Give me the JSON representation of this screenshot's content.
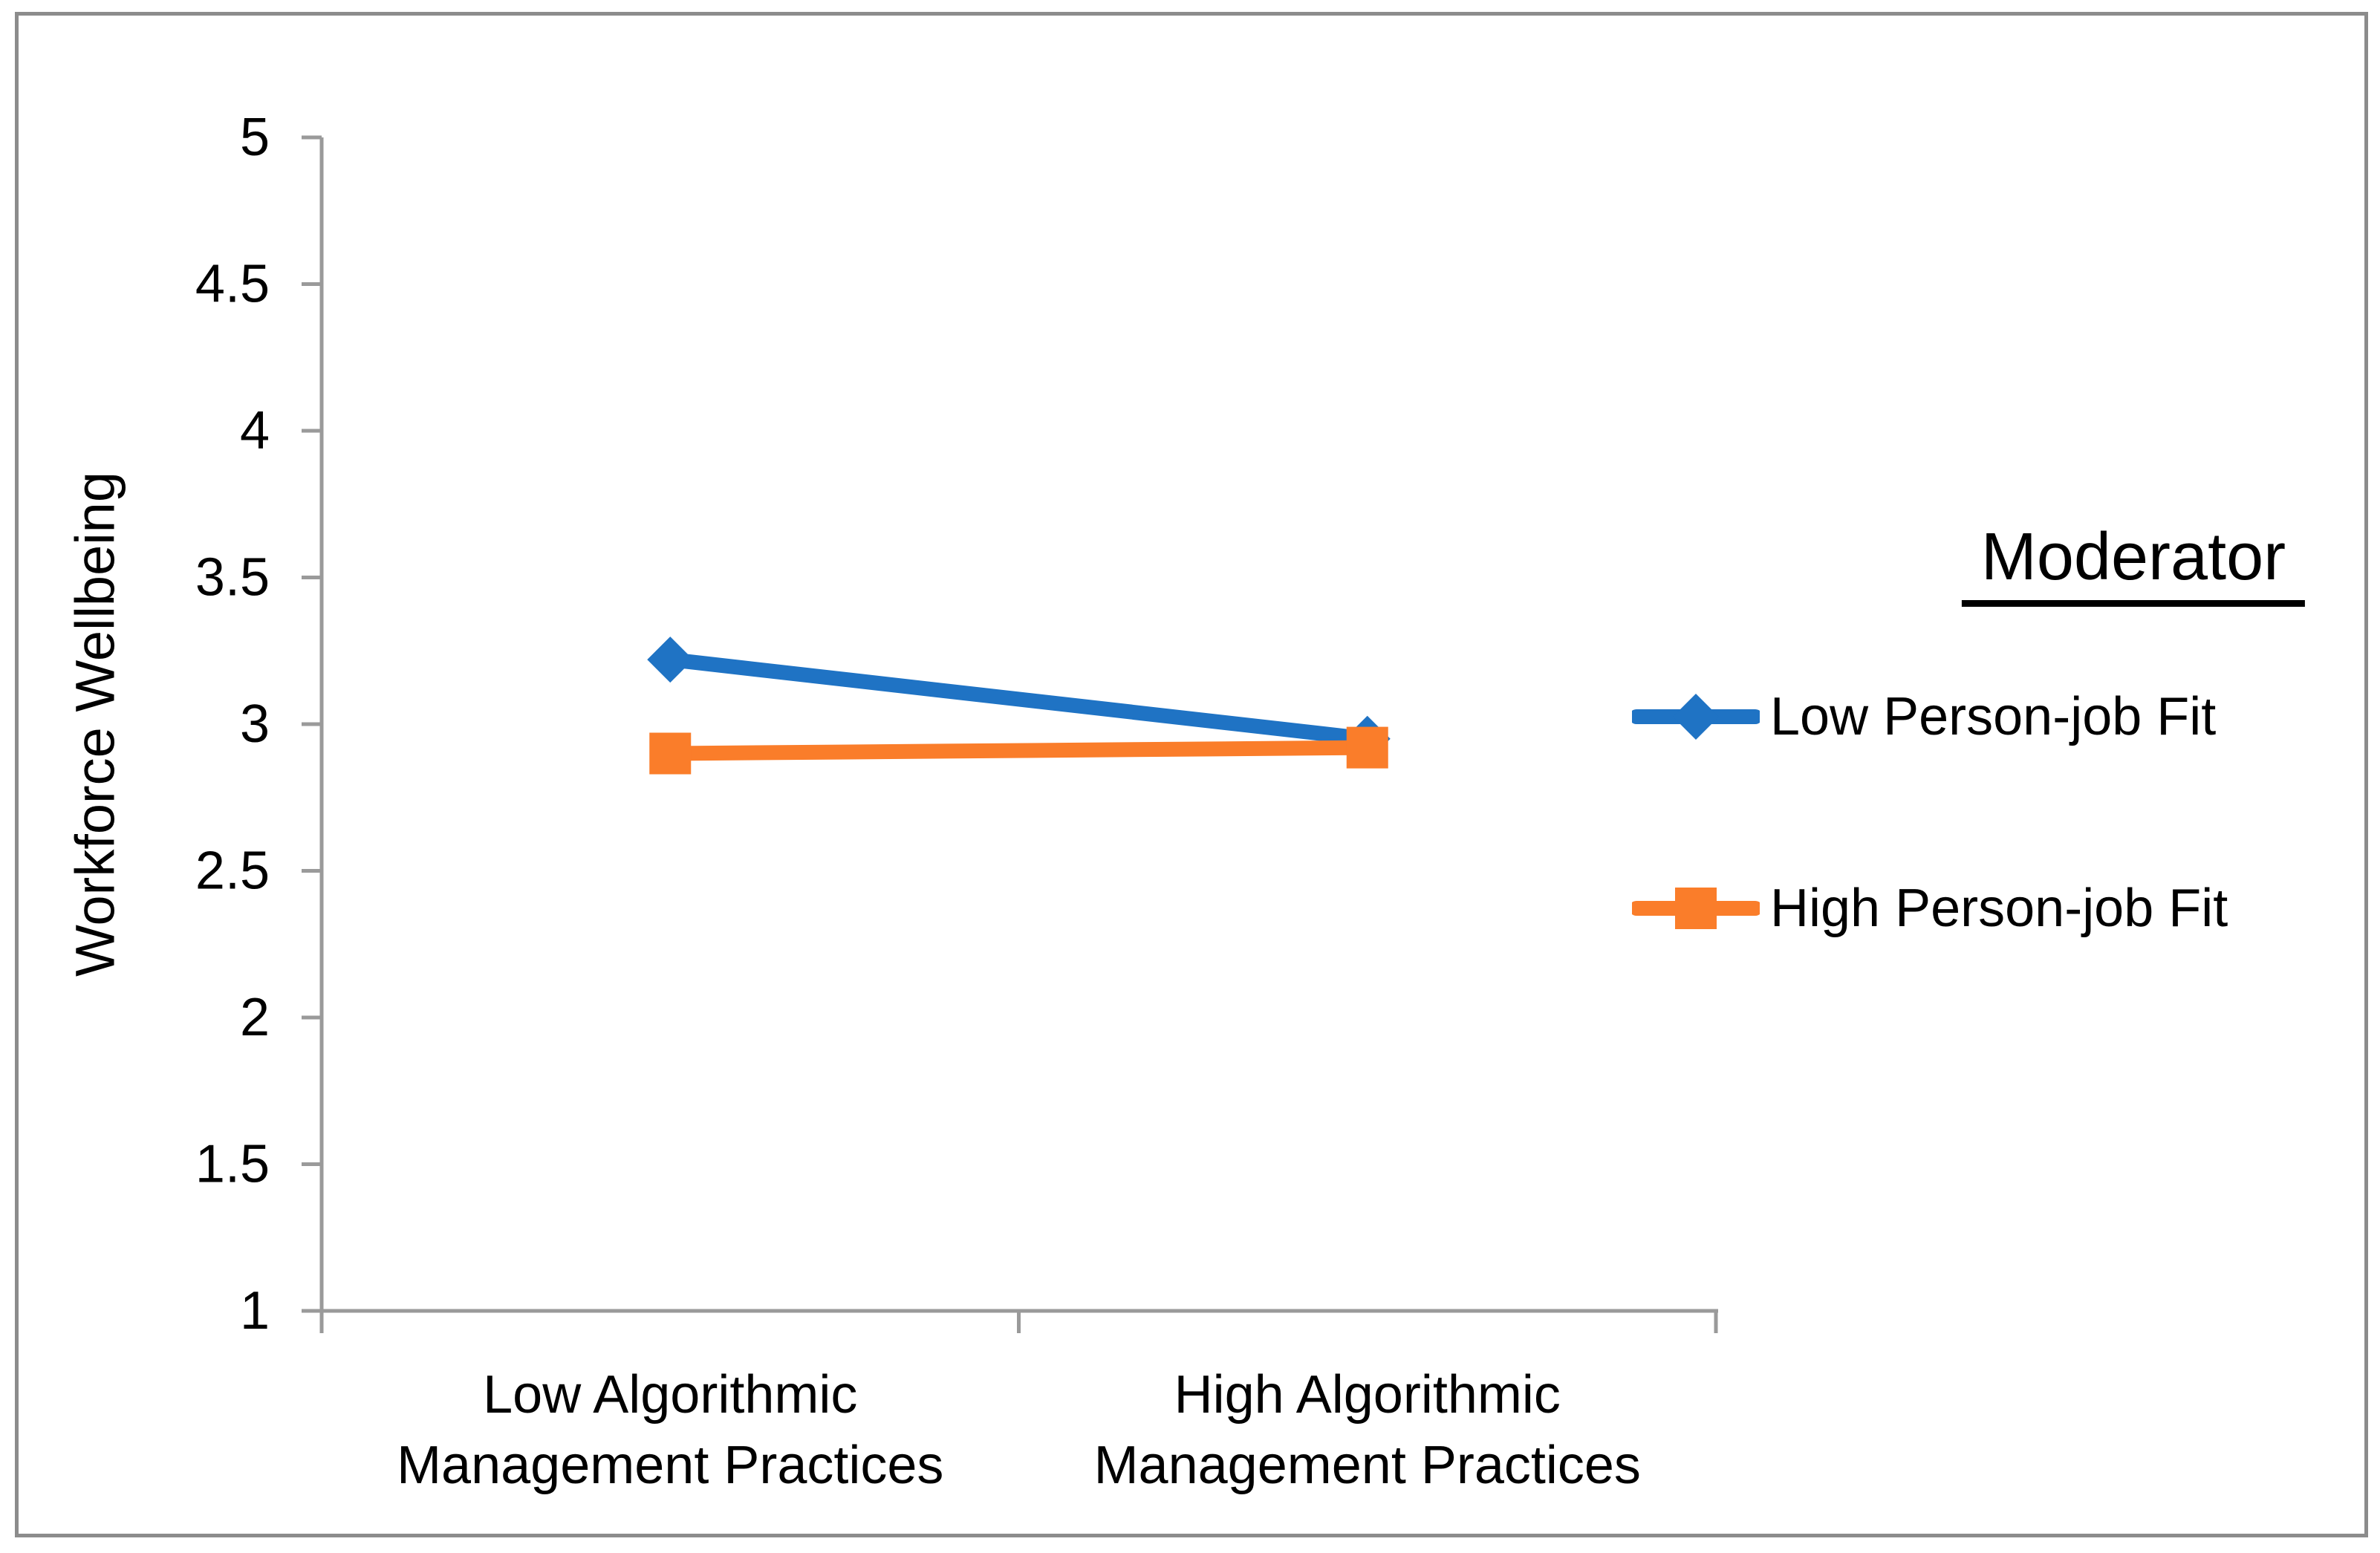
{
  "figure": {
    "background": "#FFFFFF",
    "border_color": "#8C8C8C",
    "axis_color": "#9A9A9A",
    "text_color": "#000000"
  },
  "chart_data": {
    "type": "line",
    "title": "",
    "xlabel": "",
    "ylabel": "Workforce Wellbeing",
    "ylim": [
      1,
      5
    ],
    "ytick_step": 0.5,
    "yticks": [
      "5",
      "4.5",
      "4",
      "3.5",
      "3",
      "2.5",
      "2",
      "1.5",
      "1"
    ],
    "grid": false,
    "categories": [
      [
        "Low Algorithmic",
        "Management Practices"
      ],
      [
        "High Algorithmic",
        "Management Practices"
      ]
    ],
    "series": [
      {
        "name": "Low Person-job Fit",
        "marker": "diamond",
        "color": "#1F73C4",
        "values": [
          3.22,
          2.95
        ]
      },
      {
        "name": "High Person-job Fit",
        "marker": "square",
        "color": "#FA7D2A",
        "values": [
          2.9,
          2.92
        ]
      }
    ],
    "legend": {
      "title": "Moderator",
      "position": "right"
    }
  }
}
